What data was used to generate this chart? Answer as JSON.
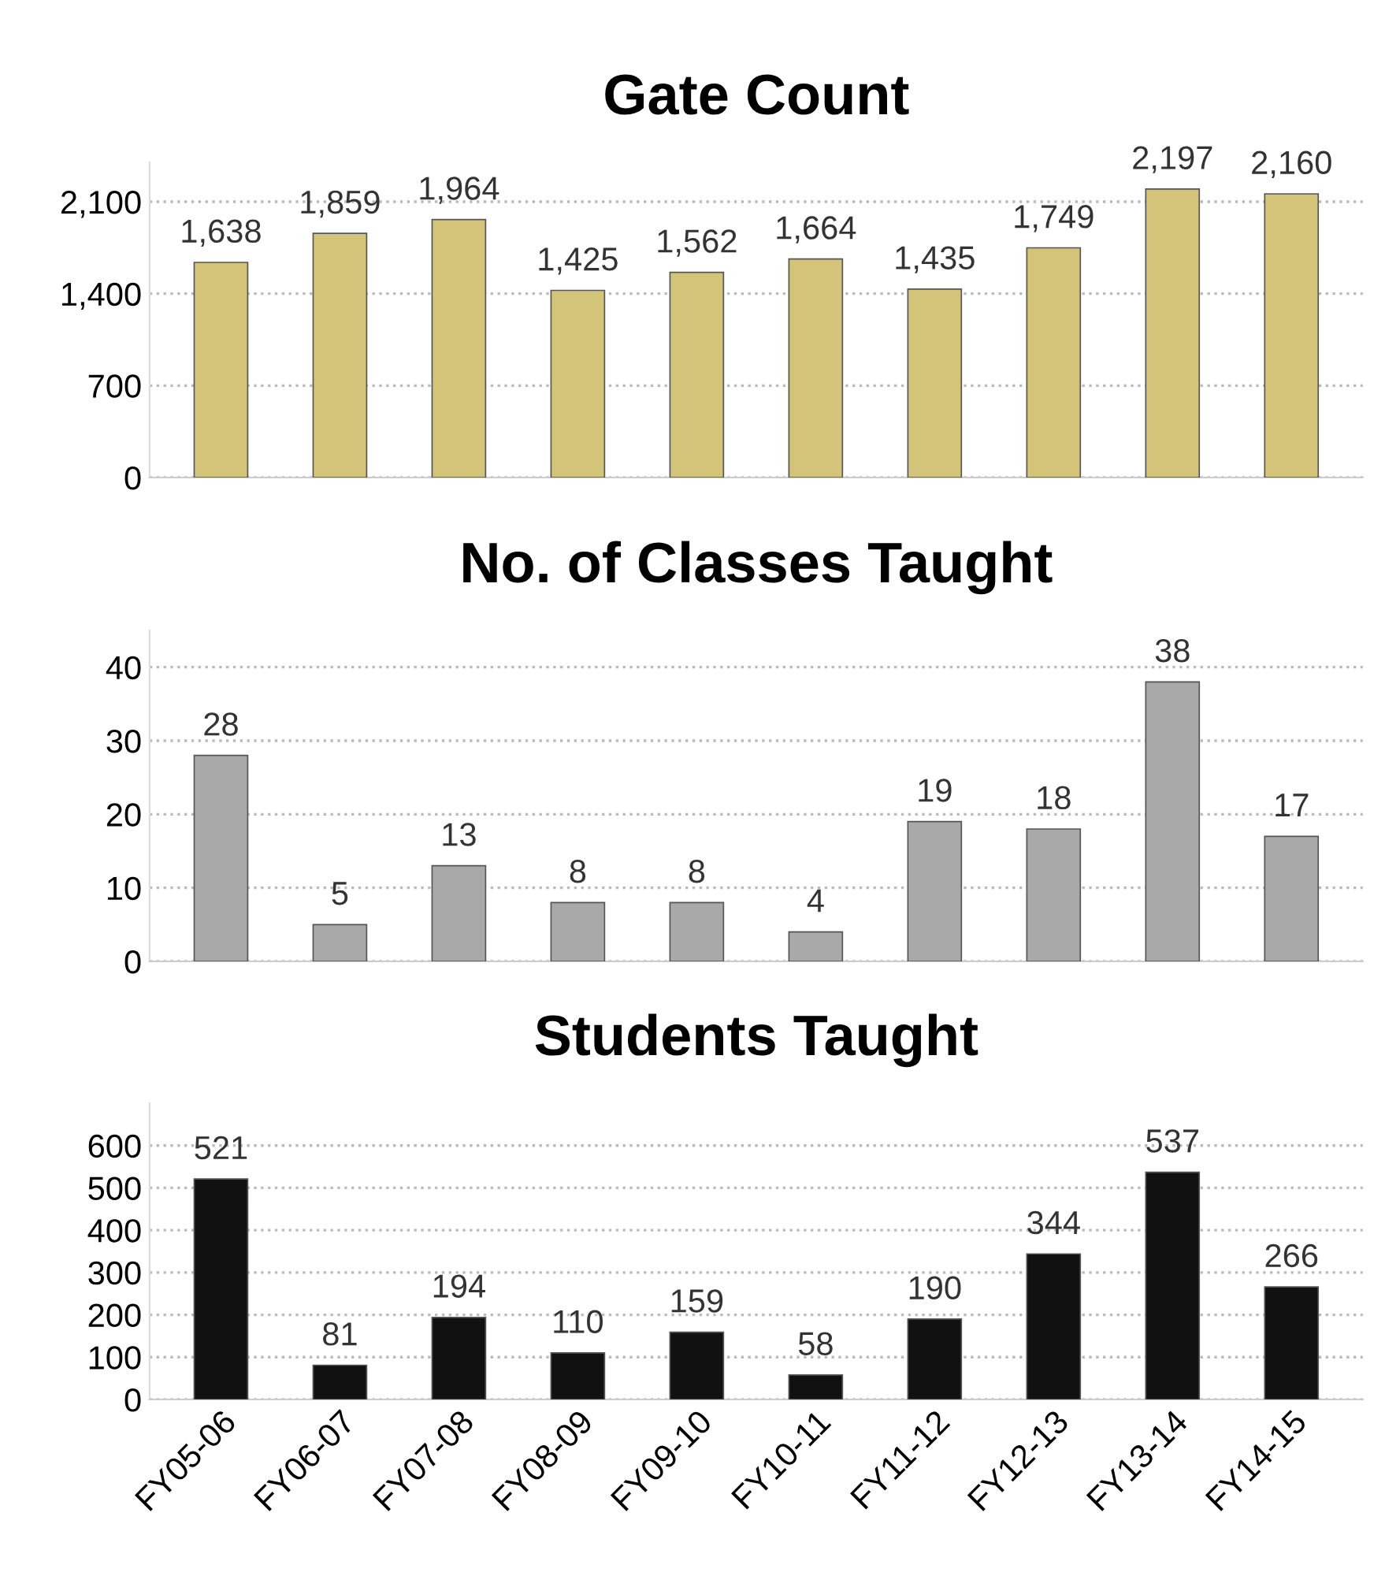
{
  "chart_data": [
    {
      "type": "bar",
      "title": "Gate Count",
      "categories": [
        null,
        null,
        null,
        null,
        null,
        null,
        null,
        null,
        null,
        null
      ],
      "values": [
        1638,
        1859,
        1964,
        1425,
        1562,
        1664,
        1435,
        1749,
        2197,
        2160
      ],
      "color": "#d4c47a",
      "value_labels": [
        "1,638",
        "1,859",
        "1,964",
        "1,425",
        "1,562",
        "1,664",
        "1,435",
        "1,749",
        "2,197",
        "2,160"
      ],
      "ylim": [
        0,
        2400
      ],
      "yticks": [
        0,
        {
          "value": 700,
          "label": "700"
        },
        {
          "value": 1400,
          "label": "1,400"
        },
        {
          "value": 2100,
          "label": "2,100"
        }
      ],
      "grid": "y",
      "tick_labels": "y"
    },
    {
      "type": "bar",
      "title": "No. of Classes Taught",
      "categories": [
        null,
        null,
        null,
        null,
        null,
        null,
        null,
        null,
        null,
        null
      ],
      "values": [
        28,
        5,
        13,
        8,
        8,
        4,
        19,
        18,
        38,
        17
      ],
      "color": "#a9a9a9",
      "data_labels": true,
      "ylim": [
        0,
        45
      ],
      "yticks": [
        0,
        10,
        20,
        30,
        40
      ],
      "grid": "y",
      "tick_labels": "y"
    },
    {
      "type": "bar",
      "title": "Students Taught",
      "categories": [
        "FY05-06",
        "FY06-07",
        "FY07-08",
        "FY08-09",
        "FY09-10",
        "FY10-11",
        "FY11-12",
        "FY12-13",
        "FY13-14",
        "FY14-15"
      ],
      "values": [
        521,
        81,
        194,
        110,
        159,
        58,
        190,
        344,
        537,
        266
      ],
      "color": "#111111",
      "data_labels": true,
      "ylim": [
        0,
        700
      ],
      "yticks": [
        0,
        100,
        200,
        300,
        400,
        500,
        600
      ],
      "grid": "y"
    }
  ]
}
